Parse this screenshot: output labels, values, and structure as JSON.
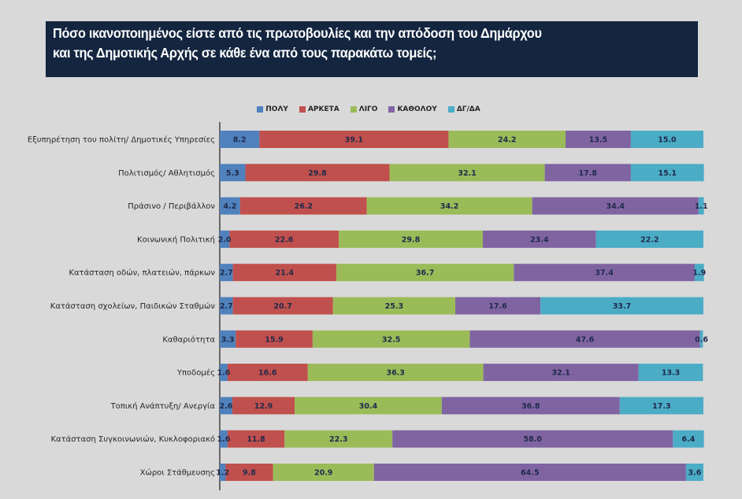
{
  "title": {
    "line1": "Πόσο ικανοποιημένος είστε από τις πρωτοβουλίες και την απόδοση του Δημάρχου",
    "line2": "και της Δημοτικής Αρχής σε κάθε ένα από τους παρακάτω τομείς;"
  },
  "chart_data": {
    "type": "bar",
    "orientation": "horizontal",
    "stacked": "percent",
    "title": "Πόσο ικανοποιημένος είστε από τις πρωτοβουλίες και την απόδοση του Δημάρχου και της Δημοτικής Αρχής σε κάθε ένα από τους παρακάτω τομείς;",
    "xlabel": "",
    "ylabel": "",
    "xlim": [
      0,
      100
    ],
    "grid": false,
    "legend_position": "top",
    "categories": [
      "Εξυπηρέτηση του πολίτη/ Δημοτικές Υπηρεσίες",
      "Πολιτισμός/ Αθλητισμός",
      "Πράσινο / Περιβάλλον",
      "Κοινωνική Πολιτική",
      "Κατάσταση οδών, πλατειών, πάρκων",
      "Κατάσταση σχολείων, Παιδικών Σταθμών",
      "Καθαριότητα",
      "Υποδομές",
      "Τοπική Ανάπτυξη/ Ανεργία",
      "Κατάσταση Συγκοινωνιών, Κυκλοφοριακό",
      "Χώροι Στάθμευσης"
    ],
    "series": [
      {
        "name": "ΠΟΛΥ",
        "color": "#4f81bd",
        "values": [
          8.2,
          5.3,
          4.2,
          2.0,
          2.7,
          2.7,
          3.3,
          1.6,
          2.6,
          1.6,
          1.2
        ]
      },
      {
        "name": "ΑΡΚΕΤΑ",
        "color": "#c0504d",
        "values": [
          39.1,
          29.8,
          26.2,
          22.6,
          21.4,
          20.7,
          15.9,
          16.6,
          12.9,
          11.8,
          9.8
        ]
      },
      {
        "name": "ΛΙΓΟ",
        "color": "#9bbb59",
        "values": [
          24.2,
          32.1,
          34.2,
          29.8,
          36.7,
          25.3,
          32.5,
          36.3,
          30.4,
          22.3,
          20.9
        ]
      },
      {
        "name": "ΚΑΘΟΛΟΥ",
        "color": "#8064a2",
        "values": [
          13.5,
          17.8,
          34.4,
          23.4,
          37.4,
          17.6,
          47.6,
          32.1,
          36.8,
          58.0,
          64.5
        ]
      },
      {
        "name": "ΔΓ/ΔΑ",
        "color": "#4bacc6",
        "values": [
          15.0,
          15.1,
          1.1,
          22.2,
          1.9,
          33.7,
          0.6,
          13.3,
          17.3,
          6.4,
          3.6
        ]
      }
    ]
  }
}
